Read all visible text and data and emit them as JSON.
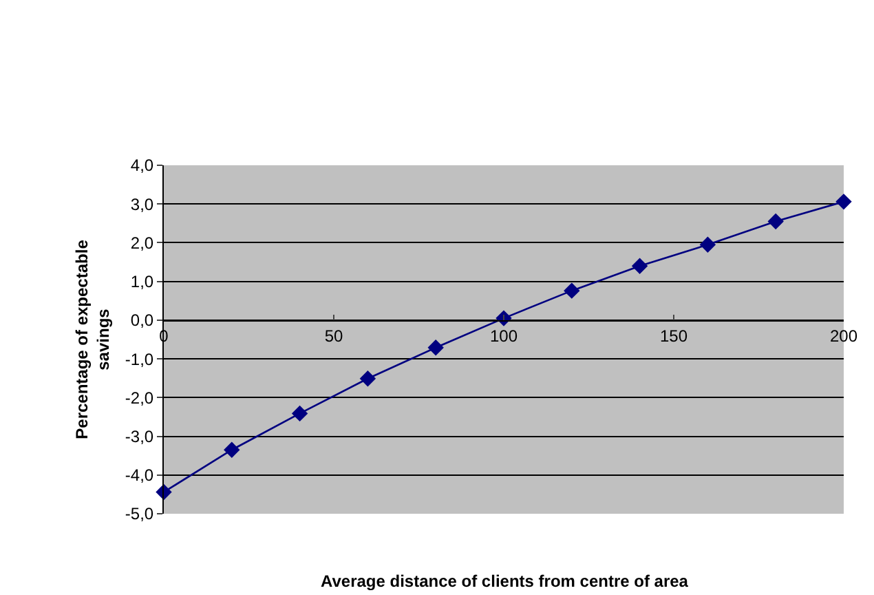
{
  "chart_data": {
    "type": "line",
    "xlabel": "Average distance of clients from centre of area",
    "ylabel": "Percentage of expectable savings",
    "x": [
      0,
      20,
      40,
      60,
      80,
      100,
      120,
      140,
      160,
      180,
      200
    ],
    "series": [
      {
        "color": "#000080",
        "values": [
          -4.44,
          -3.35,
          -2.41,
          -1.51,
          -0.71,
          0.05,
          0.76,
          1.4,
          1.95,
          2.55,
          3.06
        ]
      }
    ],
    "xlim": [
      0,
      200
    ],
    "xticks": [
      0,
      50,
      100,
      150,
      200
    ],
    "ylim": [
      -5,
      4
    ],
    "yticks": [
      {
        "value": -5,
        "label": "-5,0"
      },
      {
        "value": -4,
        "label": "-4,0"
      },
      {
        "value": -3,
        "label": "-3,0"
      },
      {
        "value": -2,
        "label": "-2,0"
      },
      {
        "value": -1,
        "label": "-1,0"
      },
      {
        "value": 0,
        "label": "0,0"
      },
      {
        "value": 1,
        "label": "1,0"
      },
      {
        "value": 2,
        "label": "2,0"
      },
      {
        "value": 3,
        "label": "3,0"
      },
      {
        "value": 4,
        "label": "4,0"
      }
    ],
    "grid": "y",
    "marker": "diamond",
    "line_style": "solid"
  }
}
